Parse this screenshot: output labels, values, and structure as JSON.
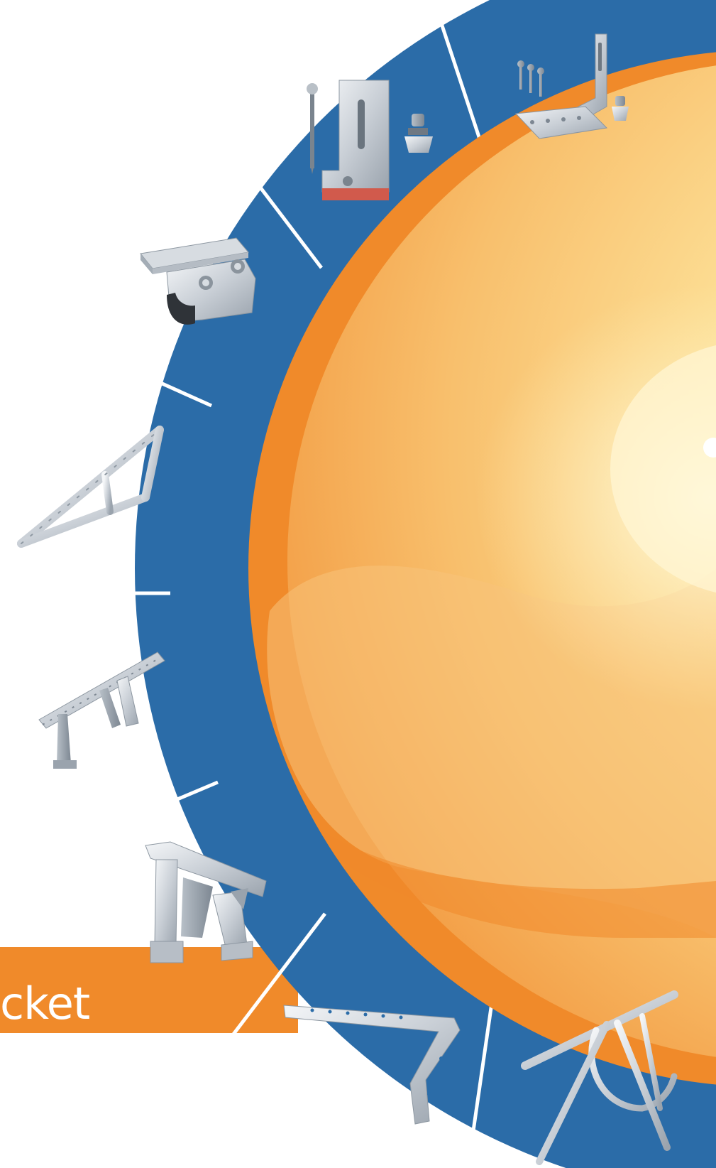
{
  "banner": {
    "label": "cket",
    "color": "#f08a2a"
  },
  "ring": {
    "color": "#2b6ca8",
    "divider_color": "#ffffff",
    "segments": [
      {
        "item": "tile-roof-hook-with-screws-icon"
      },
      {
        "item": "l-foot-bracket-with-screw-icon"
      },
      {
        "item": "standing-seam-clamp-icon"
      },
      {
        "item": "triangle-frame-bracket-icon"
      },
      {
        "item": "tilt-rail-bracket-icon"
      },
      {
        "item": "double-leg-ground-bracket-icon"
      },
      {
        "item": "l-shaped-arm-bracket-icon"
      },
      {
        "item": "truss-ground-mount-icon"
      }
    ]
  },
  "sun": {
    "colors": [
      "#f18f2c",
      "#f6b35a",
      "#fde39a",
      "#fff6cf"
    ]
  }
}
